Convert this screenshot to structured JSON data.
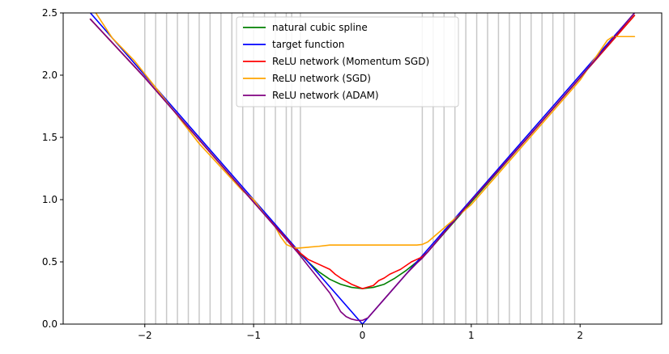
{
  "chart_data": {
    "type": "line",
    "title": "",
    "xlabel": "",
    "ylabel": "",
    "xlim": [
      -2.75,
      2.75
    ],
    "ylim": [
      0,
      2.5
    ],
    "x_ticks": [
      -2,
      -1,
      0,
      1,
      2
    ],
    "x_tick_labels": [
      "−2",
      "−1",
      "0",
      "1",
      "2"
    ],
    "y_ticks": [
      0,
      0.5,
      1,
      1.5,
      2,
      2.5
    ],
    "y_tick_labels": [
      "0.0",
      "0.5",
      "1.0",
      "1.5",
      "2.0",
      "2.5"
    ],
    "grid": false,
    "legend_position": "upper center",
    "knots": [
      -2.0,
      -1.9,
      -1.8,
      -1.7,
      -1.6,
      -1.5,
      -1.4,
      -1.3,
      -1.2,
      -1.1,
      -1.0,
      -0.9,
      -0.8,
      -0.7,
      -0.65,
      -0.57,
      0.55,
      0.65,
      0.75,
      0.85,
      0.95,
      1.05,
      1.15,
      1.25,
      1.35,
      1.45,
      1.55,
      1.65,
      1.75,
      1.85,
      1.95
    ],
    "knot_color": "#c8c8c8",
    "series": [
      {
        "name": "natural cubic spline",
        "color": "#008000",
        "x": [
          -2.5,
          -2.0,
          -1.5,
          -1.0,
          -0.6,
          -0.5,
          -0.4,
          -0.3,
          -0.2,
          -0.1,
          0.0,
          0.1,
          0.2,
          0.3,
          0.4,
          0.5,
          0.6,
          1.0,
          1.5,
          2.0,
          2.5
        ],
        "y": [
          2.45,
          1.98,
          1.48,
          0.98,
          0.59,
          0.5,
          0.42,
          0.36,
          0.32,
          0.295,
          0.285,
          0.295,
          0.32,
          0.37,
          0.43,
          0.5,
          0.58,
          0.98,
          1.48,
          1.98,
          2.48
        ]
      },
      {
        "name": "target function",
        "color": "#0000ff",
        "x": [
          -2.5,
          0.0,
          2.5
        ],
        "y": [
          2.5,
          0.0,
          2.5
        ]
      },
      {
        "name": "ReLU network (Momentum SGD)",
        "color": "#ff0000",
        "x": [
          -2.5,
          -2.0,
          -1.5,
          -1.0,
          -0.6,
          -0.5,
          -0.4,
          -0.3,
          -0.25,
          -0.2,
          -0.1,
          0.0,
          0.1,
          0.15,
          0.2,
          0.25,
          0.3,
          0.35,
          0.4,
          0.45,
          0.5,
          0.55,
          0.6,
          1.0,
          1.5,
          2.0,
          2.5
        ],
        "y": [
          2.45,
          1.98,
          1.48,
          0.98,
          0.59,
          0.52,
          0.48,
          0.44,
          0.4,
          0.37,
          0.32,
          0.285,
          0.31,
          0.35,
          0.37,
          0.4,
          0.42,
          0.44,
          0.47,
          0.5,
          0.52,
          0.54,
          0.58,
          0.99,
          1.48,
          1.98,
          2.48
        ]
      },
      {
        "name": "ReLU network (SGD)",
        "color": "#ffa500",
        "x": [
          -2.5,
          -2.45,
          -2.3,
          -2.1,
          -1.9,
          -1.5,
          -1.1,
          -1.0,
          -0.9,
          -0.8,
          -0.75,
          -0.7,
          -0.65,
          -0.6,
          -0.4,
          -0.3,
          0.0,
          0.3,
          0.5,
          0.55,
          0.6,
          1.0,
          1.5,
          2.0,
          2.25,
          2.3,
          2.5
        ],
        "y": [
          2.58,
          2.5,
          2.3,
          2.12,
          1.9,
          1.45,
          1.07,
          1.0,
          0.88,
          0.78,
          0.7,
          0.64,
          0.62,
          0.61,
          0.625,
          0.635,
          0.635,
          0.635,
          0.635,
          0.64,
          0.66,
          0.96,
          1.46,
          1.96,
          2.28,
          2.31,
          2.31
        ]
      },
      {
        "name": "ReLU network (ADAM)",
        "color": "#800080",
        "x": [
          -2.5,
          -2.0,
          -1.5,
          -1.0,
          -0.6,
          -0.5,
          -0.4,
          -0.3,
          -0.2,
          -0.15,
          -0.1,
          -0.05,
          0.0,
          0.05,
          0.1,
          0.2,
          0.3,
          0.4,
          0.5,
          0.55,
          0.6,
          1.0,
          1.5,
          2.0,
          2.5
        ],
        "y": [
          2.45,
          1.98,
          1.48,
          0.98,
          0.58,
          0.47,
          0.36,
          0.25,
          0.1,
          0.06,
          0.04,
          0.03,
          0.03,
          0.05,
          0.1,
          0.2,
          0.3,
          0.4,
          0.49,
          0.53,
          0.58,
          0.99,
          1.48,
          1.98,
          2.5
        ]
      }
    ]
  }
}
